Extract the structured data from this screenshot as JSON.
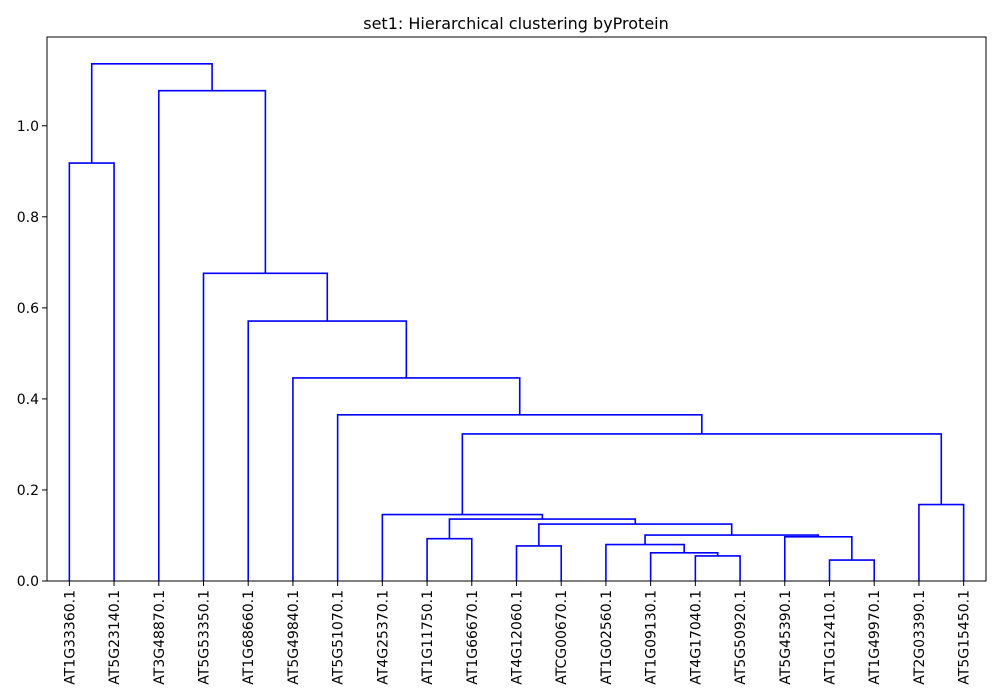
{
  "chart_data": {
    "type": "dendrogram",
    "title": "set1: Hierarchical clustering byProtein",
    "xlabel": "",
    "ylabel": "",
    "ylim": [
      0,
      1.195
    ],
    "yticks": [
      "0.0",
      "0.2",
      "0.4",
      "0.6",
      "0.8",
      "1.0"
    ],
    "ytick_values": [
      0,
      0.2,
      0.4,
      0.6,
      0.8,
      1.0
    ],
    "grid": false,
    "line_color": "#0000ff",
    "leaves": [
      "AT1G33360.1",
      "AT5G23140.1",
      "AT3G48870.1",
      "AT5G53350.1",
      "AT1G68660.1",
      "AT5G49840.1",
      "AT5G51070.1",
      "AT4G25370.1",
      "AT1G11750.1",
      "AT1G66670.1",
      "AT4G12060.1",
      "ATCG00670.1",
      "AT1G02560.1",
      "AT1G09130.1",
      "AT4G17040.1",
      "AT5G50920.1",
      "AT5G45390.1",
      "AT1G12410.1",
      "AT1G49970.1",
      "AT2G03390.1",
      "AT5G15450.1"
    ],
    "merges": [
      {
        "id": "n1",
        "left": 14,
        "right": 15,
        "height": 0.055
      },
      {
        "id": "n2",
        "left": 13,
        "right": "n1",
        "height": 0.062
      },
      {
        "id": "n3",
        "left": 12,
        "right": "n2",
        "height": 0.08
      },
      {
        "id": "n4",
        "left": 17,
        "right": 18,
        "height": 0.046
      },
      {
        "id": "n5",
        "left": 16,
        "right": "n4",
        "height": 0.097
      },
      {
        "id": "n6",
        "left": "n3",
        "right": "n5",
        "height": 0.101
      },
      {
        "id": "n7",
        "left": 10,
        "right": 11,
        "height": 0.077
      },
      {
        "id": "n8",
        "left": "n7",
        "right": "n6",
        "height": 0.125
      },
      {
        "id": "n9",
        "left": 8,
        "right": 9,
        "height": 0.093
      },
      {
        "id": "n10",
        "left": "n9",
        "right": "n8",
        "height": 0.136
      },
      {
        "id": "n11",
        "left": 7,
        "right": "n10",
        "height": 0.146
      },
      {
        "id": "n12",
        "left": 19,
        "right": 20,
        "height": 0.168
      },
      {
        "id": "n13",
        "left": "n11",
        "right": "n12",
        "height": 0.323
      },
      {
        "id": "n14",
        "left": 6,
        "right": "n13",
        "height": 0.365
      },
      {
        "id": "n15",
        "left": 5,
        "right": "n14",
        "height": 0.446
      },
      {
        "id": "n16",
        "left": 4,
        "right": "n15",
        "height": 0.571
      },
      {
        "id": "n17",
        "left": 3,
        "right": "n16",
        "height": 0.676
      },
      {
        "id": "n18",
        "left": 0,
        "right": 1,
        "height": 0.918
      },
      {
        "id": "n19",
        "left": 2,
        "right": "n17",
        "height": 1.077
      },
      {
        "id": "n20",
        "left": "n18",
        "right": "n19",
        "height": 1.136
      }
    ]
  }
}
